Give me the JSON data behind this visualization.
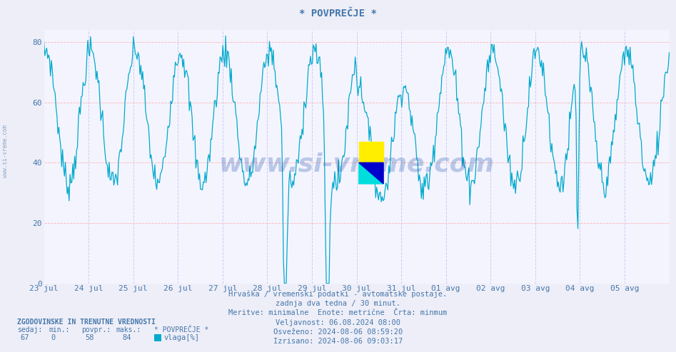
{
  "title": "* POVPREČJE *",
  "bg_color": "#eeeef8",
  "plot_bg_color": "#f4f4ff",
  "line_color": "#00aacc",
  "grid_h_color": "#ffaaaa",
  "grid_v_color": "#ccccee",
  "axis_color": "#4499bb",
  "text_color": "#4477aa",
  "watermark_color": "#2255aa",
  "ylim": [
    0,
    84
  ],
  "yticks": [
    0,
    20,
    40,
    60,
    80
  ],
  "xlabel_dates": [
    "23 jul",
    "24 jul",
    "25 jul",
    "26 jul",
    "27 jul",
    "28 jul",
    "29 jul",
    "30 jul",
    "31 jul",
    "01 avg",
    "02 avg",
    "03 avg",
    "04 avg",
    "05 avg"
  ],
  "subtitle_lines": [
    "Hrvaška / vremenski podatki - avtomatske postaje.",
    "zadnja dva tedna / 30 minut.",
    "Meritve: minimalne  Enote: metrične  Črta: minmum",
    "Veljavnost: 06.08.2024 08:00",
    "Osveženo: 2024-08-06 08:59:20",
    "Izrisano: 2024-08-06 09:03:17"
  ],
  "footer_header": "ZGODOVINSKE IN TRENUTNE VREDNOSTI",
  "footer_labels": [
    "sedaj:",
    "min.:",
    "povpr.:",
    "maks.:",
    "* POVPREČJE *"
  ],
  "footer_values": [
    "67",
    "0",
    "58",
    "84"
  ],
  "footer_legend_label": "vlaga[%]",
  "legend_color": "#00aacc",
  "watermark_text": "www.si-vreme.com",
  "logo_colors": [
    "#ffff00",
    "#00cccc",
    "#0000aa"
  ],
  "title_color": "#4477aa",
  "sidebar_text": "www.si-vreme.com",
  "n_days": 14,
  "n_per_day": 48
}
